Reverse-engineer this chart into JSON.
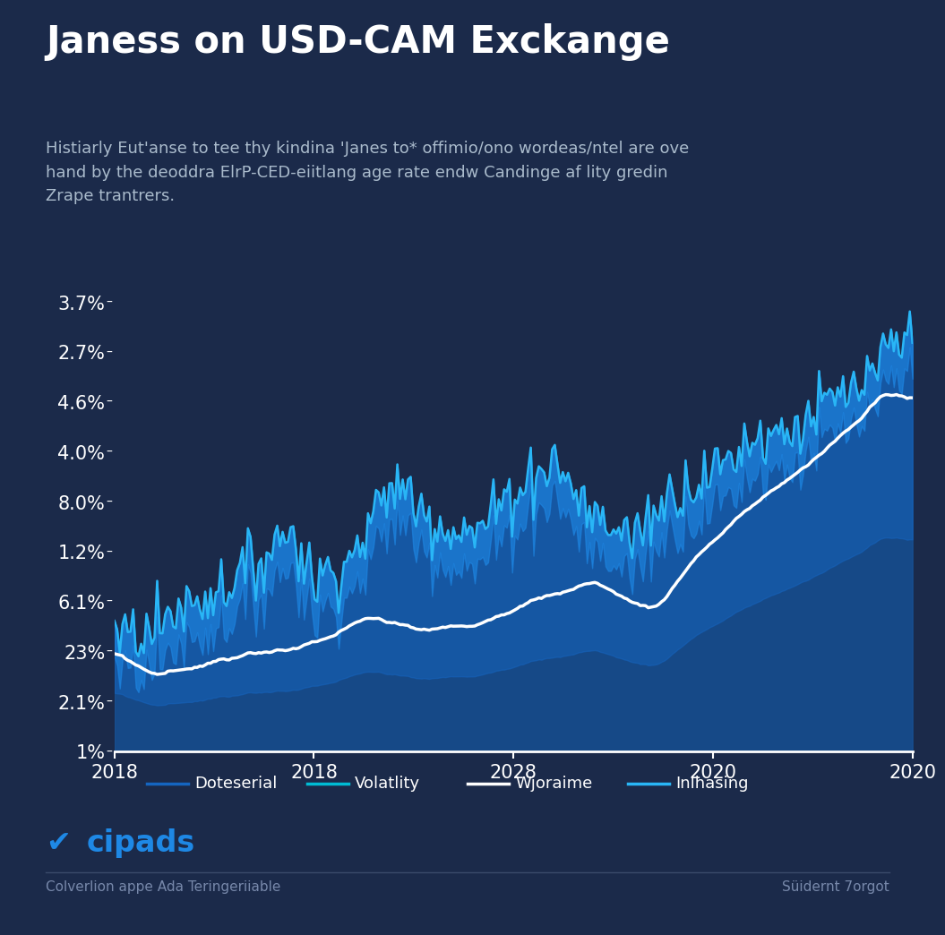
{
  "title": "Janess on USD-CAM Exckange",
  "subtitle": "Histiarly Eut'anse to tee thy kindina 'Janes to* offimio/ono wordeas/ntel are ove\nhand by the deoddra ElrP-CED-eiitlang age rate endw Candinge af lity gredin\nZrape trantrers.",
  "background_color": "#1b2a4a",
  "x_labels": [
    "2018",
    "2018",
    "2028",
    "2020",
    "2020"
  ],
  "y_labels": [
    "1%",
    "2.1%",
    "23%",
    "6.1%",
    "1.2%",
    "8.0%",
    "4.0%",
    "4.6%",
    "2.7%",
    "3.7%"
  ],
  "legend_items": [
    {
      "label": "Doteserial",
      "color": "#1565c0"
    },
    {
      "label": "Volatlity",
      "color": "#00bcd4"
    },
    {
      "label": "Wjoraime",
      "color": "#ffffff"
    },
    {
      "label": "Inlhasing",
      "color": "#29b6f6"
    }
  ],
  "text_color": "#ffffff",
  "axis_color": "#ffffff",
  "footer_left": "cipads",
  "footer_subtitle": "Colverlion appe Ada Teringeriiable",
  "footer_right": "Süidernt 7orgot",
  "volatile_line_color": "#29b6f6",
  "smooth_line_color": "#ffffff",
  "fill_deep_color": "#0d3060",
  "fill_mid_color": "#1565c0",
  "fill_light_color": "#1e88e5"
}
